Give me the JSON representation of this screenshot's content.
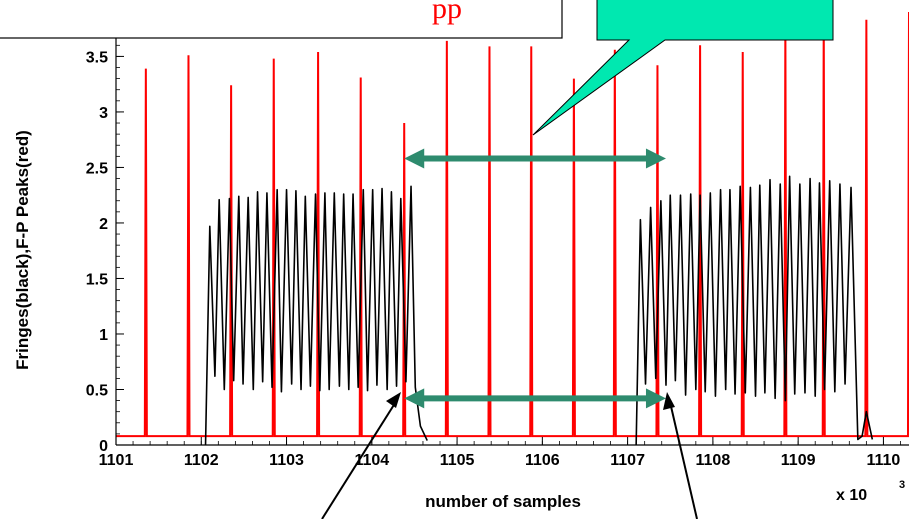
{
  "chart_data": {
    "type": "line",
    "xlabel": "number of samples",
    "ylabel": "Fringes(black),F-P Peaks(red)",
    "x_multiplier_label": "x 10",
    "x_multiplier_exponent": "3",
    "xlim": [
      1101,
      1110.3
    ],
    "ylim": [
      0,
      3.9
    ],
    "x_ticks": [
      "1101",
      "1102",
      "1103",
      "1104",
      "1105",
      "1106",
      "1107",
      "1108",
      "1109",
      "1110"
    ],
    "y_ticks": [
      "0",
      "0.5",
      "1",
      "1.5",
      "2",
      "2.5",
      "3",
      "3.5"
    ],
    "legend": "none",
    "grid": false,
    "series": [
      {
        "color": "#ff0000",
        "baseline": 0.08,
        "peaks_x": [
          1101.35,
          1101.85,
          1102.35,
          1102.85,
          1103.37,
          1103.87,
          1104.38,
          1104.88,
          1105.38,
          1105.87,
          1106.37,
          1106.85,
          1107.35,
          1107.85,
          1108.35,
          1108.85,
          1109.3,
          1109.8,
          1110.3
        ],
        "peaks_y": [
          3.39,
          3.51,
          3.24,
          3.48,
          3.54,
          3.31,
          2.9,
          3.64,
          3.59,
          3.59,
          3.3,
          3.56,
          3.42,
          3.6,
          3.54,
          3.8,
          3.88,
          3.83,
          3.9
        ]
      },
      {
        "color": "#000000",
        "segments": [
          {
            "x": [
              1102.05,
              1102.1,
              1102.16,
              1102.21,
              1102.27,
              1102.33,
              1102.38,
              1102.44,
              1102.49,
              1102.55,
              1102.61,
              1102.66,
              1102.72,
              1102.77,
              1102.83,
              1102.89,
              1102.94,
              1103.0,
              1103.06,
              1103.11,
              1103.17,
              1103.22,
              1103.28,
              1103.34,
              1103.39,
              1103.45,
              1103.5,
              1103.56,
              1103.62,
              1103.67,
              1103.73,
              1103.78,
              1103.84,
              1103.9,
              1103.95,
              1104.01,
              1104.06,
              1104.12,
              1104.18,
              1104.23,
              1104.29,
              1104.34,
              1104.4,
              1104.46,
              1104.51,
              1104.57,
              1104.65
            ],
            "y": [
              0.0,
              1.97,
              0.62,
              2.21,
              0.5,
              2.22,
              0.58,
              2.24,
              0.55,
              2.23,
              0.5,
              2.28,
              0.57,
              2.27,
              0.52,
              2.3,
              0.48,
              2.3,
              0.55,
              2.29,
              0.5,
              2.24,
              0.53,
              2.26,
              0.49,
              2.27,
              0.5,
              2.27,
              0.53,
              2.26,
              0.5,
              2.26,
              0.52,
              2.3,
              0.49,
              2.3,
              0.54,
              2.31,
              0.5,
              2.28,
              0.53,
              2.22,
              0.57,
              2.33,
              0.52,
              0.17,
              0.04
            ]
          },
          {
            "x": [
              1107.1,
              1107.15,
              1107.21,
              1107.27,
              1107.33,
              1107.39,
              1107.45,
              1107.5,
              1107.56,
              1107.62,
              1107.68,
              1107.74,
              1107.8,
              1107.85,
              1107.91,
              1107.97,
              1108.03,
              1108.09,
              1108.15,
              1108.2,
              1108.26,
              1108.32,
              1108.38,
              1108.44,
              1108.5,
              1108.55,
              1108.61,
              1108.67,
              1108.73,
              1108.79,
              1108.85,
              1108.9,
              1108.96,
              1109.02,
              1109.08,
              1109.14,
              1109.2,
              1109.25,
              1109.31,
              1109.37,
              1109.43,
              1109.49,
              1109.55,
              1109.62,
              1109.7,
              1109.75,
              1109.8,
              1109.87
            ],
            "y": [
              0.0,
              2.03,
              0.55,
              2.14,
              0.6,
              2.2,
              0.54,
              2.25,
              0.58,
              2.25,
              0.45,
              2.26,
              0.5,
              2.25,
              0.48,
              2.27,
              0.44,
              2.3,
              0.5,
              2.3,
              0.46,
              2.33,
              0.47,
              2.32,
              0.44,
              2.34,
              0.47,
              2.39,
              0.42,
              2.35,
              0.4,
              2.42,
              0.46,
              2.35,
              0.47,
              2.4,
              0.44,
              2.36,
              0.5,
              2.38,
              0.48,
              2.35,
              0.55,
              2.32,
              0.05,
              0.08,
              0.3,
              0.05
            ]
          }
        ]
      }
    ],
    "annotations": {
      "callout_text_visible": "pp",
      "arrows": [
        {
          "from_x": 1104.38,
          "to_x": 1107.45,
          "y": 2.58
        },
        {
          "from_x": 1104.38,
          "to_x": 1107.45,
          "y": 0.42
        }
      ]
    },
    "colors": {
      "fp_peaks": "#ff0000",
      "fringes": "#000000",
      "arrow": "#2e8b6e",
      "callout_fill": "#00e8b0",
      "text_red": "#ff0000"
    }
  }
}
